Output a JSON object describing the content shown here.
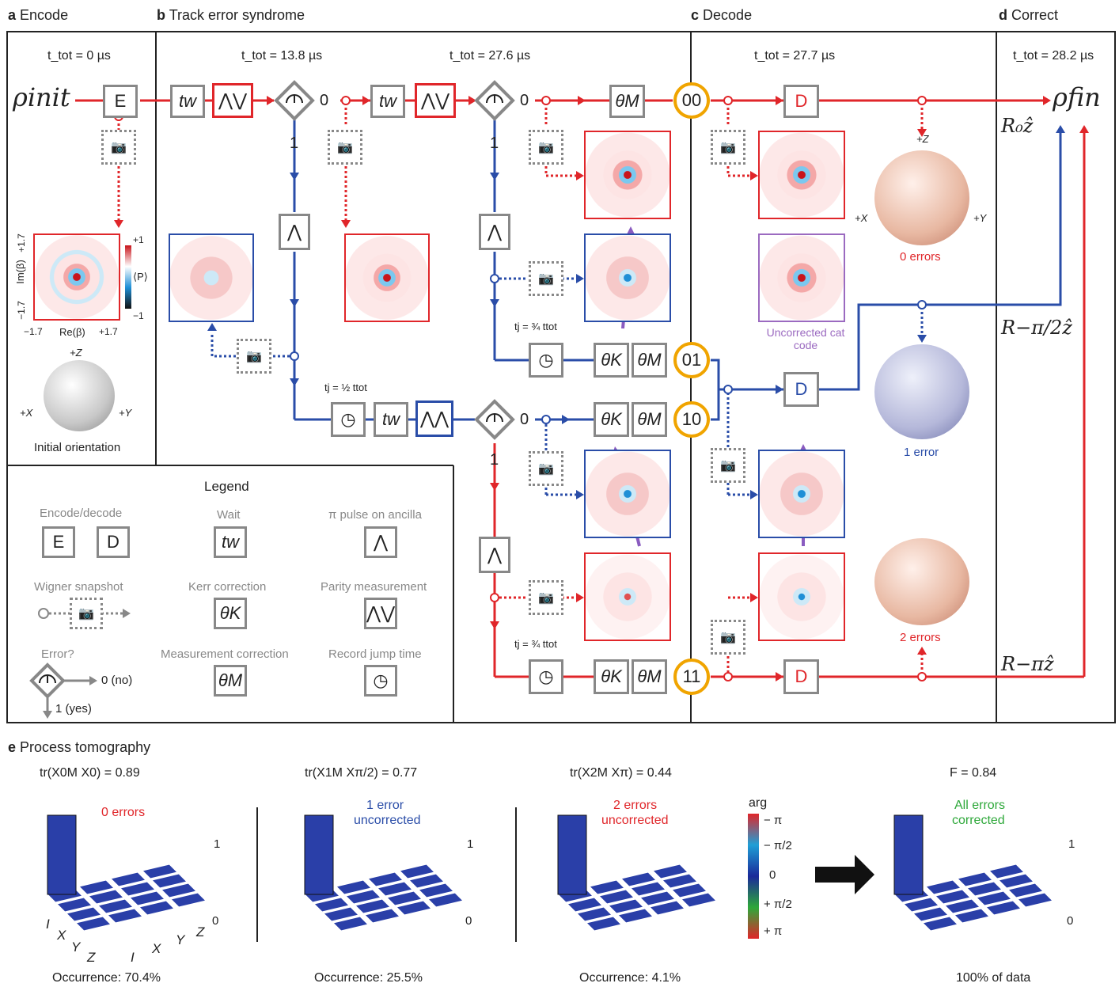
{
  "panels": {
    "a": {
      "letter": "a",
      "title": "Encode"
    },
    "b": {
      "letter": "b",
      "title": "Track error syndrome"
    },
    "c": {
      "letter": "c",
      "title": "Decode"
    },
    "d": {
      "letter": "d",
      "title": "Correct"
    },
    "e": {
      "letter": "e",
      "title": "Process tomography"
    }
  },
  "times": {
    "t0": "t_tot = 0 µs",
    "t1": "t_tot = 13.8 µs",
    "t2": "t_tot = 27.6 µs",
    "t3": "t_tot = 27.7 µs",
    "t4": "t_tot = 28.2 µs"
  },
  "states": {
    "rho_init": "ρinit",
    "rho_fin": "ρfin"
  },
  "boxes": {
    "encode": "E",
    "decode": "D",
    "wait": "tw",
    "theta_k": "θK",
    "theta_m": "θM"
  },
  "nodes": {
    "n00": "00",
    "n01": "01",
    "n10": "10",
    "n11": "11"
  },
  "branch_labels": {
    "zero": "0",
    "one": "1"
  },
  "jump_times": {
    "half": "tj = ½ ttot",
    "three_quarter": "tj = ¾ ttot"
  },
  "rotations": {
    "r0": "R₀ẑ",
    "r_half": "R−π/2ẑ",
    "r_pi": "R−πẑ"
  },
  "encode_plot": {
    "ylabel": "Im(β)",
    "xlabel": "Re(β)",
    "x_ticks": [
      "−1.7",
      "+1.7"
    ],
    "y_ticks": [
      "+1.7",
      "−1.7"
    ],
    "colorbar": {
      "top": "+1",
      "bottom": "−1",
      "label": "⟨P⟩"
    },
    "axes": {
      "z": "+Z",
      "x": "+X",
      "y": "+Y"
    },
    "caption": "Initial orientation"
  },
  "decode_labels": {
    "uncorrected": "Uncorrected cat code",
    "errors0": "0 errors",
    "errors1": "1 error",
    "errors2": "2 errors",
    "sphere_axes": {
      "z": "+Z",
      "x": "+X",
      "y": "+Y"
    }
  },
  "legend": {
    "title": "Legend",
    "encode_decode": "Encode/decode",
    "wait": "Wait",
    "pi_pulse": "π pulse on ancilla",
    "wigner": "Wigner snapshot",
    "kerr": "Kerr correction",
    "parity": "Parity measurement",
    "error": "Error?",
    "meas_corr": "Measurement correction",
    "record": "Record jump time",
    "no": "0 (no)",
    "yes": "1 (yes)"
  },
  "tomography": [
    {
      "metric": "tr(X0M X0) = 0.89",
      "label1": "0 errors",
      "label2": "",
      "occurrence": "Occurrence: 70.4%"
    },
    {
      "metric": "tr(X1M Xπ/2) = 0.77",
      "label1": "1 error",
      "label2": "uncorrected",
      "occurrence": "Occurrence: 25.5%"
    },
    {
      "metric": "tr(X2M Xπ) = 0.44",
      "label1": "2 errors",
      "label2": "uncorrected",
      "occurrence": "Occurrence: 4.1%"
    },
    {
      "metric": "F = 0.84",
      "label1": "All errors",
      "label2": "corrected",
      "occurrence": "100% of data"
    }
  ],
  "tomo_axes": {
    "z_top": "1",
    "z_bottom": "0",
    "basis": [
      "I",
      "X",
      "Y",
      "Z"
    ]
  },
  "arg_colorbar": {
    "title": "arg",
    "ticks": [
      "− π",
      "− π/2",
      "0",
      "+ π/2",
      "+ π"
    ]
  },
  "colors": {
    "red": "#e0262a",
    "blue": "#2a4da8",
    "gray": "#888888",
    "orange": "#f0a400",
    "green": "#2ea83a",
    "purple": "#9b6ac0"
  }
}
